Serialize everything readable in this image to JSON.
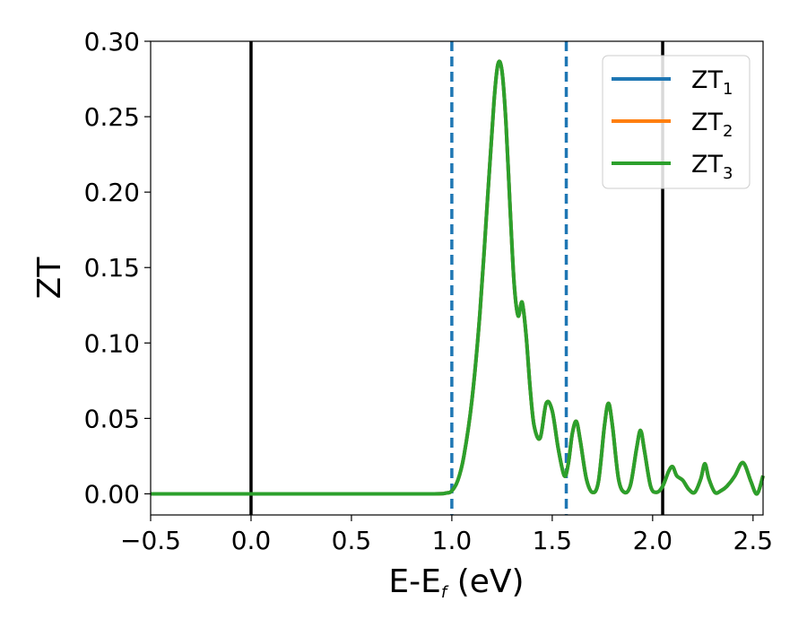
{
  "chart_data": {
    "type": "line",
    "title": "",
    "xlabel": {
      "main": "E-E",
      "sub": "f",
      "unit": " (eV)"
    },
    "ylabel": "ZT",
    "xlim": [
      -0.5,
      2.55
    ],
    "ylim": [
      -0.014,
      0.3
    ],
    "xticks": [
      -0.5,
      0.0,
      0.5,
      1.0,
      1.5,
      2.0,
      2.5
    ],
    "xtick_labels": [
      "−0.5",
      "0.0",
      "0.5",
      "1.0",
      "1.5",
      "2.0",
      "2.5"
    ],
    "yticks": [
      0.0,
      0.05,
      0.1,
      0.15,
      0.2,
      0.25,
      0.3
    ],
    "ytick_labels": [
      "0.00",
      "0.05",
      "0.10",
      "0.15",
      "0.20",
      "0.25",
      "0.30"
    ],
    "grid": false,
    "legend": {
      "position": "top-right"
    },
    "vlines_solid": [
      0.0,
      2.05
    ],
    "vlines_dashed": [
      1.0,
      1.57
    ],
    "series": [
      {
        "name": "ZT",
        "sub": "1",
        "color": "#1f77b4",
        "x": [],
        "y": []
      },
      {
        "name": "ZT",
        "sub": "2",
        "color": "#ff7f0e",
        "x": [],
        "y": []
      },
      {
        "name": "ZT",
        "sub": "3",
        "color": "#2ca02c",
        "x": [
          -0.5,
          0.0,
          0.5,
          0.9,
          0.97,
          1.0,
          1.03,
          1.06,
          1.1,
          1.14,
          1.18,
          1.21,
          1.23,
          1.25,
          1.27,
          1.29,
          1.31,
          1.33,
          1.35,
          1.37,
          1.39,
          1.41,
          1.44,
          1.47,
          1.5,
          1.53,
          1.56,
          1.58,
          1.6,
          1.62,
          1.64,
          1.67,
          1.7,
          1.73,
          1.76,
          1.78,
          1.8,
          1.83,
          1.86,
          1.89,
          1.92,
          1.94,
          1.96,
          1.99,
          2.02,
          2.05,
          2.08,
          2.1,
          2.12,
          2.15,
          2.18,
          2.21,
          2.24,
          2.26,
          2.28,
          2.31,
          2.34,
          2.37,
          2.41,
          2.44,
          2.46,
          2.49,
          2.52,
          2.55
        ],
        "y": [
          0.0,
          0.0,
          0.0,
          0.0,
          0.0005,
          0.002,
          0.009,
          0.025,
          0.062,
          0.12,
          0.2,
          0.26,
          0.285,
          0.28,
          0.245,
          0.19,
          0.14,
          0.118,
          0.127,
          0.105,
          0.07,
          0.045,
          0.037,
          0.06,
          0.055,
          0.03,
          0.012,
          0.02,
          0.04,
          0.048,
          0.035,
          0.01,
          0.001,
          0.008,
          0.045,
          0.06,
          0.045,
          0.01,
          0.001,
          0.006,
          0.03,
          0.042,
          0.028,
          0.005,
          0.001,
          0.005,
          0.015,
          0.018,
          0.012,
          0.009,
          0.003,
          0.001,
          0.01,
          0.02,
          0.01,
          0.001,
          0.002,
          0.005,
          0.012,
          0.02,
          0.019,
          0.008,
          0.0,
          0.012
        ]
      }
    ]
  }
}
